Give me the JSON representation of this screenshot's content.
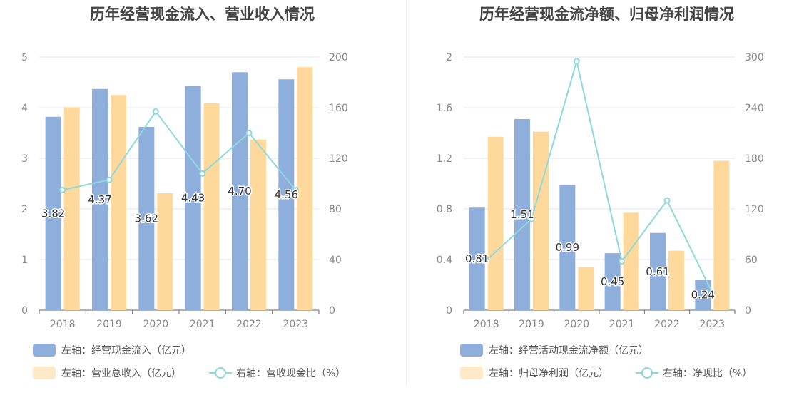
{
  "colors": {
    "bar_primary": "#8eaedb",
    "bar_secondary": "#ffd99b",
    "line": "#8fd8dc",
    "grid": "#e3e6f3",
    "axis_text": "#888888"
  },
  "chart_data": [
    {
      "type": "bar",
      "title": "历年经营现金流入、营业收入情况",
      "categories": [
        "2018",
        "2019",
        "2020",
        "2021",
        "2022",
        "2023"
      ],
      "series": [
        {
          "name": "左轴：经营现金流入（亿元）",
          "axis": "left",
          "type": "bar",
          "values": [
            3.82,
            4.37,
            3.62,
            4.43,
            4.7,
            4.56
          ],
          "labels": [
            "3.82",
            "4.37",
            "3.62",
            "4.43",
            "4.70",
            "4.56"
          ]
        },
        {
          "name": "左轴：营业总收入（亿元）",
          "axis": "left",
          "type": "bar",
          "values": [
            4.01,
            4.25,
            2.31,
            4.09,
            3.37,
            4.8
          ]
        },
        {
          "name": "右轴：营收现金比（%）",
          "axis": "right",
          "type": "line",
          "values": [
            95,
            103,
            157,
            108,
            140,
            95
          ]
        }
      ],
      "y_left": {
        "min": 0,
        "max": 5,
        "ticks": [
          0,
          1,
          2,
          3,
          4,
          5
        ]
      },
      "y_right": {
        "min": 0,
        "max": 200,
        "ticks": [
          0,
          40,
          80,
          120,
          160,
          200
        ]
      },
      "legend": [
        {
          "label": "左轴：经营现金流入（亿元）",
          "kind": "bar-primary"
        },
        {
          "label": "左轴：营业总收入（亿元）",
          "kind": "bar-secondary"
        },
        {
          "label": "右轴：营收现金比（%）",
          "kind": "line"
        }
      ],
      "legend_position": "bottom",
      "grid": true
    },
    {
      "type": "bar",
      "title": "历年经营现金流净额、归母净利润情况",
      "categories": [
        "2018",
        "2019",
        "2020",
        "2021",
        "2022",
        "2023"
      ],
      "series": [
        {
          "name": "左轴：经营活动现金流净额（亿元）",
          "axis": "left",
          "type": "bar",
          "values": [
            0.81,
            1.51,
            0.99,
            0.45,
            0.61,
            0.24
          ],
          "labels": [
            "0.81",
            "1.51",
            "0.99",
            "0.45",
            "0.61",
            "0.24"
          ]
        },
        {
          "name": "左轴：归母净利润（亿元）",
          "axis": "left",
          "type": "bar",
          "values": [
            1.37,
            1.41,
            0.34,
            0.77,
            0.47,
            1.18
          ]
        },
        {
          "name": "右轴：净现比（%）",
          "axis": "right",
          "type": "line",
          "values": [
            59,
            108,
            295,
            58,
            130,
            21
          ]
        }
      ],
      "y_left": {
        "min": 0,
        "max": 2,
        "ticks": [
          0,
          0.4,
          0.8,
          1.2,
          1.6,
          2
        ]
      },
      "y_right": {
        "min": 0,
        "max": 300,
        "ticks": [
          0,
          60,
          120,
          180,
          240,
          300
        ]
      },
      "legend": [
        {
          "label": "左轴：经营活动现金流净额（亿元）",
          "kind": "bar-primary"
        },
        {
          "label": "左轴：归母净利润（亿元）",
          "kind": "bar-secondary"
        },
        {
          "label": "右轴：净现比（%）",
          "kind": "line"
        }
      ],
      "legend_position": "bottom",
      "grid": true
    }
  ]
}
